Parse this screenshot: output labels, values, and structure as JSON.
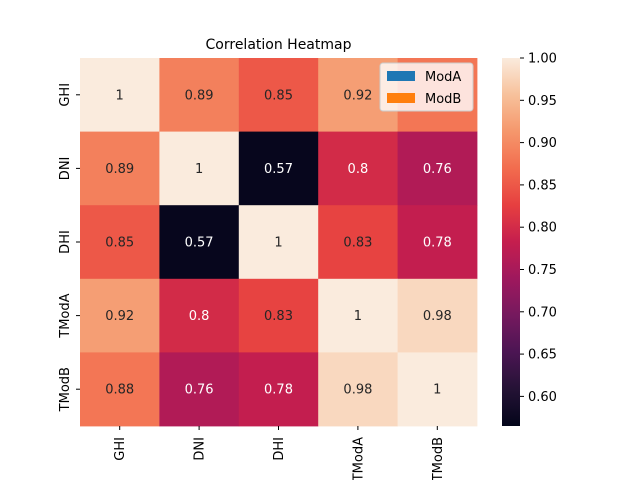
{
  "chart_data": {
    "type": "heatmap",
    "title": "Correlation Heatmap",
    "rows": [
      "GHI",
      "DNI",
      "DHI",
      "TModA",
      "TModB"
    ],
    "columns": [
      "GHI",
      "DNI",
      "DHI",
      "TModA",
      "TModB"
    ],
    "values": [
      [
        1,
        0.89,
        0.85,
        0.92,
        0.88
      ],
      [
        0.89,
        1,
        0.57,
        0.8,
        0.76
      ],
      [
        0.85,
        0.57,
        1,
        0.83,
        0.78
      ],
      [
        0.92,
        0.8,
        0.83,
        1,
        0.98
      ],
      [
        0.88,
        0.76,
        0.78,
        0.98,
        1
      ]
    ],
    "annotations": [
      [
        "1",
        "0.89",
        "0.85",
        "0.92",
        ""
      ],
      [
        "0.89",
        "1",
        "0.57",
        "0.8",
        "0.76"
      ],
      [
        "0.85",
        "0.57",
        "1",
        "0.83",
        "0.78"
      ],
      [
        "0.92",
        "0.8",
        "0.83",
        "1",
        "0.98"
      ],
      [
        "0.88",
        "0.76",
        "0.78",
        "0.98",
        "1"
      ]
    ],
    "colorbar": {
      "range": [
        0.565,
        1.0
      ],
      "ticks": [
        "0.60",
        "0.65",
        "0.70",
        "0.75",
        "0.80",
        "0.85",
        "0.90",
        "0.95",
        "1.00"
      ],
      "colormap": "rocket"
    },
    "legend": {
      "placement": "upper-right",
      "entries": [
        {
          "label": "ModA",
          "color": "#1f77b4"
        },
        {
          "label": "ModB",
          "color": "#ff7f0e"
        }
      ]
    }
  }
}
